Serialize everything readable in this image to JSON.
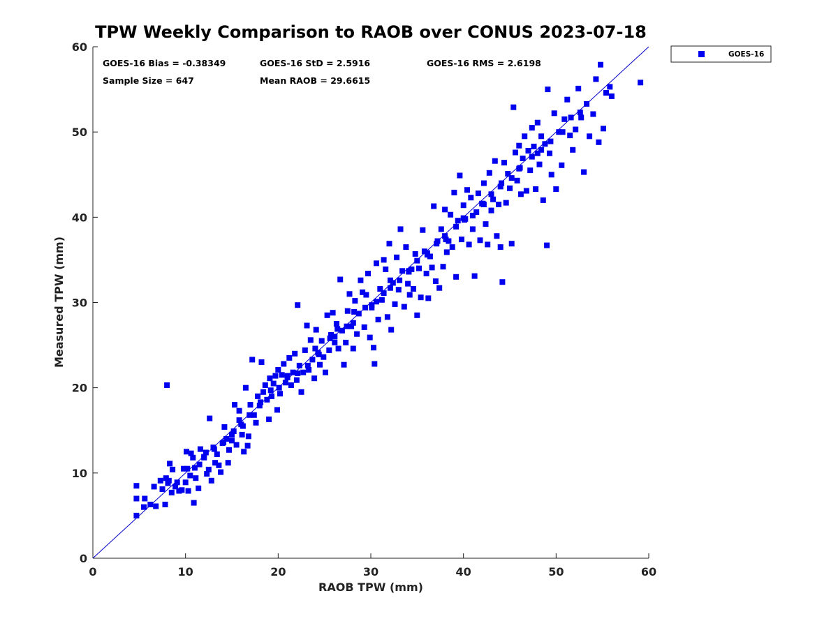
{
  "colors": {
    "marker": "#0000ee",
    "line": "#0000cc",
    "axis": "#222222"
  },
  "chart_data": {
    "type": "scatter",
    "title": "TPW Weekly Comparison to RAOB over CONUS 2023-07-18",
    "xlabel": "RAOB TPW (mm)",
    "ylabel": "Measured TPW (mm)",
    "xlim": [
      0,
      60
    ],
    "ylim": [
      0,
      60
    ],
    "xticks": [
      0,
      10,
      20,
      30,
      40,
      50,
      60
    ],
    "yticks": [
      0,
      10,
      20,
      30,
      40,
      50,
      60
    ],
    "xtick_labels": [
      "0",
      "10",
      "20",
      "30",
      "40",
      "50",
      "60"
    ],
    "ytick_labels": [
      "0",
      "10",
      "20",
      "30",
      "40",
      "50",
      "60"
    ],
    "grid": false,
    "legend": {
      "placement": "outside-top-right",
      "entries": [
        "GOES-16"
      ]
    },
    "reference_line": {
      "type": "one-to-one",
      "from": [
        0,
        0
      ],
      "to": [
        60,
        60
      ]
    },
    "stats": {
      "bias": "GOES-16 Bias = -0.38349",
      "std": "GOES-16 StD = 2.5916",
      "rms": "GOES-16 RMS = 2.6198",
      "sample_size": "Sample Size = 647",
      "mean_raob": "Mean RAOB = 29.6615"
    },
    "series": [
      {
        "name": "GOES-16",
        "points": [
          [
            4.7,
            5.0
          ],
          [
            4.7,
            7.0
          ],
          [
            4.7,
            8.5
          ],
          [
            5.5,
            6.0
          ],
          [
            5.6,
            7.0
          ],
          [
            6.2,
            6.3
          ],
          [
            6.6,
            8.4
          ],
          [
            6.8,
            6.1
          ],
          [
            7.3,
            9.1
          ],
          [
            7.5,
            8.1
          ],
          [
            7.8,
            6.3
          ],
          [
            7.9,
            9.4
          ],
          [
            8.0,
            20.3
          ],
          [
            8.1,
            8.8
          ],
          [
            8.2,
            9.1
          ],
          [
            8.3,
            11.1
          ],
          [
            8.5,
            7.7
          ],
          [
            8.6,
            10.4
          ],
          [
            8.9,
            8.4
          ],
          [
            9.1,
            8.9
          ],
          [
            9.3,
            7.9
          ],
          [
            9.6,
            8.0
          ],
          [
            9.8,
            10.5
          ],
          [
            10.0,
            8.9
          ],
          [
            10.1,
            12.5
          ],
          [
            10.2,
            10.5
          ],
          [
            10.3,
            7.9
          ],
          [
            10.5,
            9.7
          ],
          [
            10.6,
            12.3
          ],
          [
            10.8,
            11.8
          ],
          [
            10.9,
            6.5
          ],
          [
            11.1,
            9.4
          ],
          [
            11.4,
            8.2
          ],
          [
            11.5,
            11.0
          ],
          [
            11.6,
            12.8
          ],
          [
            12.0,
            11.8
          ],
          [
            12.2,
            12.4
          ],
          [
            12.3,
            9.9
          ],
          [
            12.5,
            10.4
          ],
          [
            12.6,
            16.4
          ],
          [
            12.8,
            9.1
          ],
          [
            13.0,
            13.0
          ],
          [
            13.2,
            11.2
          ],
          [
            13.4,
            12.2
          ],
          [
            13.6,
            10.9
          ],
          [
            13.8,
            10.1
          ],
          [
            14.0,
            13.5
          ],
          [
            14.2,
            15.4
          ],
          [
            14.4,
            14.0
          ],
          [
            14.6,
            11.2
          ],
          [
            14.7,
            12.7
          ],
          [
            15.0,
            13.8
          ],
          [
            15.2,
            14.9
          ],
          [
            15.3,
            18.0
          ],
          [
            15.5,
            13.3
          ],
          [
            15.8,
            16.2
          ],
          [
            16.1,
            14.5
          ],
          [
            16.2,
            15.5
          ],
          [
            16.3,
            12.5
          ],
          [
            16.5,
            20.0
          ],
          [
            16.7,
            13.2
          ],
          [
            16.8,
            14.3
          ],
          [
            16.9,
            16.8
          ],
          [
            17.2,
            23.3
          ],
          [
            17.4,
            16.8
          ],
          [
            17.6,
            15.9
          ],
          [
            17.8,
            19.0
          ],
          [
            18.0,
            17.9
          ],
          [
            18.2,
            23.0
          ],
          [
            18.4,
            19.5
          ],
          [
            18.6,
            20.3
          ],
          [
            18.8,
            18.6
          ],
          [
            19.0,
            16.3
          ],
          [
            19.1,
            21.1
          ],
          [
            19.3,
            19.0
          ],
          [
            19.5,
            20.5
          ],
          [
            19.7,
            21.4
          ],
          [
            19.9,
            17.4
          ],
          [
            20.0,
            22.1
          ],
          [
            20.2,
            19.3
          ],
          [
            20.4,
            21.5
          ],
          [
            20.6,
            22.8
          ],
          [
            20.8,
            20.6
          ],
          [
            21.0,
            21.2
          ],
          [
            21.2,
            23.5
          ],
          [
            21.4,
            20.3
          ],
          [
            21.6,
            21.8
          ],
          [
            21.8,
            24.0
          ],
          [
            22.0,
            20.9
          ],
          [
            22.1,
            29.7
          ],
          [
            22.3,
            22.6
          ],
          [
            22.5,
            19.5
          ],
          [
            22.7,
            21.8
          ],
          [
            22.9,
            24.4
          ],
          [
            23.1,
            27.3
          ],
          [
            23.3,
            22.1
          ],
          [
            23.5,
            25.6
          ],
          [
            23.7,
            23.3
          ],
          [
            23.9,
            21.1
          ],
          [
            24.1,
            26.8
          ],
          [
            24.3,
            24.1
          ],
          [
            24.5,
            22.7
          ],
          [
            24.7,
            25.5
          ],
          [
            24.9,
            23.6
          ],
          [
            25.1,
            21.8
          ],
          [
            25.3,
            28.5
          ],
          [
            25.5,
            24.4
          ],
          [
            25.7,
            26.2
          ],
          [
            25.9,
            28.8
          ],
          [
            26.1,
            25.3
          ],
          [
            26.3,
            27.5
          ],
          [
            26.5,
            24.6
          ],
          [
            26.7,
            32.7
          ],
          [
            26.9,
            26.7
          ],
          [
            27.1,
            22.7
          ],
          [
            27.3,
            25.3
          ],
          [
            27.5,
            29.0
          ],
          [
            27.7,
            31.0
          ],
          [
            27.9,
            27.2
          ],
          [
            28.1,
            24.6
          ],
          [
            28.3,
            30.2
          ],
          [
            28.5,
            26.3
          ],
          [
            28.7,
            28.7
          ],
          [
            28.9,
            32.6
          ],
          [
            29.1,
            31.2
          ],
          [
            29.3,
            27.1
          ],
          [
            29.5,
            30.9
          ],
          [
            29.7,
            33.4
          ],
          [
            29.9,
            25.9
          ],
          [
            30.1,
            29.4
          ],
          [
            30.3,
            24.7
          ],
          [
            30.4,
            22.8
          ],
          [
            30.6,
            34.6
          ],
          [
            30.8,
            28.0
          ],
          [
            31.0,
            31.6
          ],
          [
            31.2,
            30.3
          ],
          [
            31.4,
            35.0
          ],
          [
            31.6,
            33.9
          ],
          [
            31.8,
            28.3
          ],
          [
            32.0,
            36.9
          ],
          [
            32.2,
            26.8
          ],
          [
            32.4,
            32.3
          ],
          [
            32.6,
            29.8
          ],
          [
            32.8,
            35.3
          ],
          [
            33.0,
            31.5
          ],
          [
            33.2,
            38.6
          ],
          [
            33.4,
            33.7
          ],
          [
            33.6,
            29.5
          ],
          [
            33.8,
            36.5
          ],
          [
            34.0,
            32.2
          ],
          [
            34.2,
            30.9
          ],
          [
            34.4,
            33.9
          ],
          [
            34.6,
            31.6
          ],
          [
            34.8,
            35.7
          ],
          [
            35.0,
            28.5
          ],
          [
            35.2,
            34.0
          ],
          [
            35.4,
            30.6
          ],
          [
            35.6,
            38.5
          ],
          [
            35.8,
            36.0
          ],
          [
            36.0,
            33.4
          ],
          [
            36.2,
            30.5
          ],
          [
            36.4,
            35.4
          ],
          [
            36.6,
            34.1
          ],
          [
            36.8,
            41.3
          ],
          [
            37.0,
            32.5
          ],
          [
            37.2,
            37.2
          ],
          [
            37.4,
            31.7
          ],
          [
            37.6,
            38.6
          ],
          [
            37.8,
            34.2
          ],
          [
            38.0,
            40.9
          ],
          [
            38.2,
            35.9
          ],
          [
            38.4,
            37.2
          ],
          [
            38.6,
            40.3
          ],
          [
            38.8,
            36.5
          ],
          [
            39.0,
            42.9
          ],
          [
            39.2,
            33.0
          ],
          [
            39.4,
            39.6
          ],
          [
            39.6,
            44.9
          ],
          [
            39.8,
            37.4
          ],
          [
            40.0,
            41.4
          ],
          [
            40.2,
            39.8
          ],
          [
            40.4,
            43.2
          ],
          [
            40.6,
            36.8
          ],
          [
            40.8,
            42.3
          ],
          [
            41.0,
            38.6
          ],
          [
            41.2,
            33.1
          ],
          [
            41.4,
            40.6
          ],
          [
            41.6,
            42.8
          ],
          [
            41.8,
            37.3
          ],
          [
            42.0,
            41.6
          ],
          [
            42.2,
            44.0
          ],
          [
            42.4,
            39.2
          ],
          [
            42.6,
            36.8
          ],
          [
            42.8,
            45.2
          ],
          [
            43.0,
            40.8
          ],
          [
            43.2,
            42.1
          ],
          [
            43.4,
            46.6
          ],
          [
            43.6,
            37.8
          ],
          [
            43.8,
            41.5
          ],
          [
            44.0,
            36.5
          ],
          [
            44.2,
            32.4
          ],
          [
            44.4,
            46.4
          ],
          [
            44.6,
            41.7
          ],
          [
            44.8,
            45.1
          ],
          [
            45.0,
            43.4
          ],
          [
            45.2,
            36.9
          ],
          [
            45.4,
            52.9
          ],
          [
            45.6,
            47.6
          ],
          [
            45.8,
            44.3
          ],
          [
            46.0,
            48.4
          ],
          [
            46.2,
            42.7
          ],
          [
            46.4,
            46.9
          ],
          [
            46.6,
            49.5
          ],
          [
            46.8,
            43.1
          ],
          [
            47.0,
            47.8
          ],
          [
            47.2,
            45.5
          ],
          [
            47.4,
            50.5
          ],
          [
            47.6,
            48.3
          ],
          [
            47.8,
            43.3
          ],
          [
            48.0,
            51.1
          ],
          [
            48.2,
            46.2
          ],
          [
            48.4,
            49.5
          ],
          [
            48.6,
            42.0
          ],
          [
            48.8,
            48.6
          ],
          [
            49.0,
            36.7
          ],
          [
            49.1,
            55.0
          ],
          [
            49.3,
            47.5
          ],
          [
            49.5,
            45.0
          ],
          [
            49.8,
            52.2
          ],
          [
            50.0,
            43.3
          ],
          [
            50.3,
            50.0
          ],
          [
            50.6,
            46.1
          ],
          [
            50.9,
            51.5
          ],
          [
            51.2,
            53.8
          ],
          [
            51.5,
            49.6
          ],
          [
            51.8,
            47.9
          ],
          [
            52.1,
            50.3
          ],
          [
            52.4,
            55.1
          ],
          [
            52.7,
            51.7
          ],
          [
            53.0,
            45.3
          ],
          [
            53.3,
            53.3
          ],
          [
            53.6,
            49.5
          ],
          [
            54.0,
            52.1
          ],
          [
            54.3,
            56.2
          ],
          [
            54.6,
            48.8
          ],
          [
            54.8,
            57.9
          ],
          [
            55.1,
            50.4
          ],
          [
            55.4,
            54.6
          ],
          [
            55.8,
            55.3
          ],
          [
            56.0,
            54.2
          ],
          [
            59.1,
            55.8
          ],
          [
            15.8,
            17.3
          ],
          [
            17.0,
            18.0
          ],
          [
            19.2,
            19.7
          ],
          [
            21.0,
            21.4
          ],
          [
            23.2,
            22.6
          ],
          [
            24.0,
            24.6
          ],
          [
            25.6,
            25.8
          ],
          [
            26.4,
            26.9
          ],
          [
            27.4,
            27.2
          ],
          [
            28.2,
            28.9
          ],
          [
            29.4,
            29.4
          ],
          [
            30.6,
            30.1
          ],
          [
            31.4,
            31.1
          ],
          [
            32.1,
            32.6
          ],
          [
            33.1,
            32.6
          ],
          [
            34.1,
            33.7
          ],
          [
            35.0,
            34.9
          ],
          [
            36.1,
            35.6
          ],
          [
            37.1,
            36.9
          ],
          [
            38.1,
            37.4
          ],
          [
            39.2,
            38.9
          ],
          [
            40.0,
            39.9
          ],
          [
            41.0,
            40.2
          ],
          [
            42.2,
            41.5
          ],
          [
            43.0,
            42.7
          ],
          [
            44.1,
            44.0
          ],
          [
            45.2,
            44.6
          ],
          [
            46.1,
            45.8
          ],
          [
            47.4,
            47.1
          ],
          [
            48.4,
            47.9
          ],
          [
            49.4,
            48.9
          ],
          [
            50.7,
            50.0
          ],
          [
            51.6,
            51.7
          ],
          [
            52.6,
            52.3
          ],
          [
            11.0,
            10.6
          ],
          [
            12.0,
            11.9
          ],
          [
            13.1,
            12.8
          ],
          [
            14.1,
            13.6
          ],
          [
            15.0,
            14.5
          ],
          [
            16.0,
            15.7
          ],
          [
            18.1,
            18.3
          ],
          [
            20.1,
            20.0
          ],
          [
            22.1,
            21.7
          ],
          [
            24.4,
            23.9
          ],
          [
            26.1,
            26.0
          ],
          [
            28.1,
            27.6
          ],
          [
            30.1,
            29.7
          ],
          [
            32.1,
            31.7
          ],
          [
            34.1,
            33.6
          ],
          [
            36.1,
            35.8
          ],
          [
            38.0,
            37.8
          ],
          [
            40.1,
            39.7
          ],
          [
            42.1,
            41.6
          ],
          [
            44.0,
            43.6
          ],
          [
            46.0,
            45.7
          ],
          [
            48.0,
            47.5
          ]
        ]
      }
    ]
  }
}
